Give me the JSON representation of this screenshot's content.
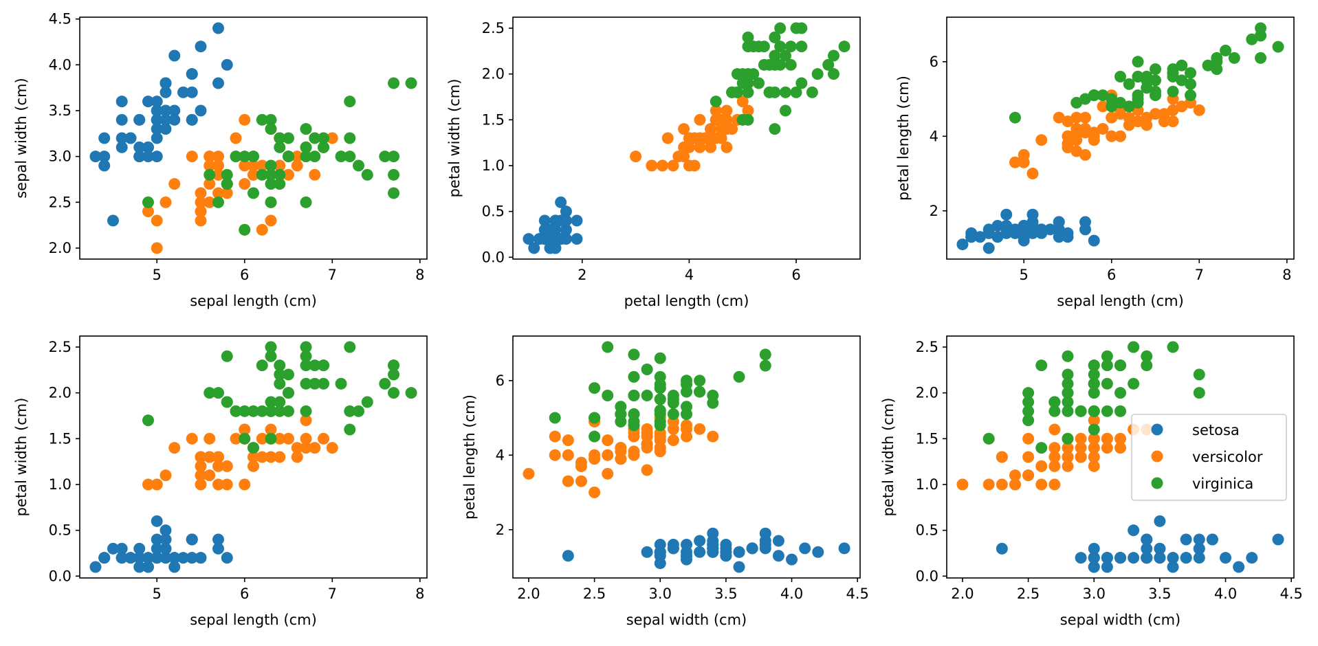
{
  "figure": {
    "legend": {
      "subplot": 5,
      "placement": "center-right",
      "entries": [
        "setosa",
        "versicolor",
        "virginica"
      ]
    }
  },
  "chart_data": {
    "type": "scatter",
    "species": [
      {
        "name": "setosa",
        "color": "#1f77b4"
      },
      {
        "name": "versicolor",
        "color": "#ff7f0e"
      },
      {
        "name": "virginica",
        "color": "#2ca02c"
      }
    ],
    "feature_names": [
      "sepal length (cm)",
      "sepal width (cm)",
      "petal length (cm)",
      "petal width (cm)"
    ],
    "subplots": [
      {
        "x_feature": 0,
        "y_feature": 1,
        "xlabel": "sepal length (cm)",
        "ylabel": "sepal width (cm)",
        "xlim": [
          4.12,
          8.08
        ],
        "ylim": [
          1.88,
          4.52
        ],
        "xticks": [
          5,
          6,
          7,
          8
        ],
        "xticklabels": [
          "5",
          "6",
          "7",
          "8"
        ],
        "yticks": [
          2.0,
          2.5,
          3.0,
          3.5,
          4.0,
          4.5
        ],
        "yticklabels": [
          "2.0",
          "2.5",
          "3.0",
          "3.5",
          "4.0",
          "4.5"
        ]
      },
      {
        "x_feature": 2,
        "y_feature": 3,
        "xlabel": "petal length (cm)",
        "ylabel": "petal width (cm)",
        "xlim": [
          0.705,
          7.195
        ],
        "ylim": [
          -0.02,
          2.62
        ],
        "xticks": [
          2,
          4,
          6
        ],
        "xticklabels": [
          "2",
          "4",
          "6"
        ],
        "yticks": [
          0.0,
          0.5,
          1.0,
          1.5,
          2.0,
          2.5
        ],
        "yticklabels": [
          "0.0",
          "0.5",
          "1.0",
          "1.5",
          "2.0",
          "2.5"
        ]
      },
      {
        "x_feature": 0,
        "y_feature": 2,
        "xlabel": "sepal length (cm)",
        "ylabel": "petal length (cm)",
        "xlim": [
          4.12,
          8.08
        ],
        "ylim": [
          0.705,
          7.195
        ],
        "xticks": [
          5,
          6,
          7,
          8
        ],
        "xticklabels": [
          "5",
          "6",
          "7",
          "8"
        ],
        "yticks": [
          2,
          4,
          6
        ],
        "yticklabels": [
          "2",
          "4",
          "6"
        ]
      },
      {
        "x_feature": 0,
        "y_feature": 3,
        "xlabel": "sepal length (cm)",
        "ylabel": "petal width (cm)",
        "xlim": [
          4.12,
          8.08
        ],
        "ylim": [
          -0.02,
          2.62
        ],
        "xticks": [
          5,
          6,
          7,
          8
        ],
        "xticklabels": [
          "5",
          "6",
          "7",
          "8"
        ],
        "yticks": [
          0.0,
          0.5,
          1.0,
          1.5,
          2.0,
          2.5
        ],
        "yticklabels": [
          "0.0",
          "0.5",
          "1.0",
          "1.5",
          "2.0",
          "2.5"
        ]
      },
      {
        "x_feature": 1,
        "y_feature": 2,
        "xlabel": "sepal width (cm)",
        "ylabel": "petal length (cm)",
        "xlim": [
          1.88,
          4.52
        ],
        "ylim": [
          0.705,
          7.195
        ],
        "xticks": [
          2.0,
          2.5,
          3.0,
          3.5,
          4.0,
          4.5
        ],
        "xticklabels": [
          "2.0",
          "2.5",
          "3.0",
          "3.5",
          "4.0",
          "4.5"
        ],
        "yticks": [
          2,
          4,
          6
        ],
        "yticklabels": [
          "2",
          "4",
          "6"
        ]
      },
      {
        "x_feature": 1,
        "y_feature": 3,
        "xlabel": "sepal width (cm)",
        "ylabel": "petal width (cm)",
        "xlim": [
          1.88,
          4.52
        ],
        "ylim": [
          -0.02,
          2.62
        ],
        "xticks": [
          2.0,
          2.5,
          3.0,
          3.5,
          4.0,
          4.5
        ],
        "xticklabels": [
          "2.0",
          "2.5",
          "3.0",
          "3.5",
          "4.0",
          "4.5"
        ],
        "yticks": [
          0.0,
          0.5,
          1.0,
          1.5,
          2.0,
          2.5
        ],
        "yticklabels": [
          "0.0",
          "0.5",
          "1.0",
          "1.5",
          "2.0",
          "2.5"
        ]
      }
    ],
    "samples": {
      "setosa": [
        [
          5.1,
          3.5,
          1.4,
          0.2
        ],
        [
          4.9,
          3.0,
          1.4,
          0.2
        ],
        [
          4.7,
          3.2,
          1.3,
          0.2
        ],
        [
          4.6,
          3.1,
          1.5,
          0.2
        ],
        [
          5.0,
          3.6,
          1.4,
          0.2
        ],
        [
          5.4,
          3.9,
          1.7,
          0.4
        ],
        [
          4.6,
          3.4,
          1.4,
          0.3
        ],
        [
          5.0,
          3.4,
          1.5,
          0.2
        ],
        [
          4.4,
          2.9,
          1.4,
          0.2
        ],
        [
          4.9,
          3.1,
          1.5,
          0.1
        ],
        [
          5.4,
          3.7,
          1.5,
          0.2
        ],
        [
          4.8,
          3.4,
          1.6,
          0.2
        ],
        [
          4.8,
          3.0,
          1.4,
          0.1
        ],
        [
          4.3,
          3.0,
          1.1,
          0.1
        ],
        [
          5.8,
          4.0,
          1.2,
          0.2
        ],
        [
          5.7,
          4.4,
          1.5,
          0.4
        ],
        [
          5.4,
          3.9,
          1.3,
          0.4
        ],
        [
          5.1,
          3.5,
          1.4,
          0.3
        ],
        [
          5.7,
          3.8,
          1.7,
          0.3
        ],
        [
          5.1,
          3.8,
          1.5,
          0.3
        ],
        [
          5.4,
          3.4,
          1.7,
          0.2
        ],
        [
          5.1,
          3.7,
          1.5,
          0.4
        ],
        [
          4.6,
          3.6,
          1.0,
          0.2
        ],
        [
          5.1,
          3.3,
          1.7,
          0.5
        ],
        [
          4.8,
          3.4,
          1.9,
          0.2
        ],
        [
          5.0,
          3.0,
          1.6,
          0.2
        ],
        [
          5.0,
          3.4,
          1.6,
          0.4
        ],
        [
          5.2,
          3.5,
          1.5,
          0.2
        ],
        [
          5.2,
          3.4,
          1.4,
          0.2
        ],
        [
          4.7,
          3.2,
          1.6,
          0.2
        ],
        [
          4.8,
          3.1,
          1.6,
          0.2
        ],
        [
          5.4,
          3.4,
          1.5,
          0.4
        ],
        [
          5.2,
          4.1,
          1.5,
          0.1
        ],
        [
          5.5,
          4.2,
          1.4,
          0.2
        ],
        [
          4.9,
          3.1,
          1.5,
          0.2
        ],
        [
          5.0,
          3.2,
          1.2,
          0.2
        ],
        [
          5.5,
          3.5,
          1.3,
          0.2
        ],
        [
          4.9,
          3.6,
          1.4,
          0.1
        ],
        [
          4.4,
          3.0,
          1.3,
          0.2
        ],
        [
          5.1,
          3.4,
          1.5,
          0.2
        ],
        [
          5.0,
          3.5,
          1.3,
          0.3
        ],
        [
          4.5,
          2.3,
          1.3,
          0.3
        ],
        [
          4.4,
          3.2,
          1.3,
          0.2
        ],
        [
          5.0,
          3.5,
          1.6,
          0.6
        ],
        [
          5.1,
          3.8,
          1.9,
          0.4
        ],
        [
          4.8,
          3.0,
          1.4,
          0.3
        ],
        [
          5.1,
          3.8,
          1.6,
          0.2
        ],
        [
          4.6,
          3.2,
          1.4,
          0.2
        ],
        [
          5.3,
          3.7,
          1.5,
          0.2
        ],
        [
          5.0,
          3.3,
          1.4,
          0.2
        ]
      ],
      "versicolor": [
        [
          7.0,
          3.2,
          4.7,
          1.4
        ],
        [
          6.4,
          3.2,
          4.5,
          1.5
        ],
        [
          6.9,
          3.1,
          4.9,
          1.5
        ],
        [
          5.5,
          2.3,
          4.0,
          1.3
        ],
        [
          6.5,
          2.8,
          4.6,
          1.5
        ],
        [
          5.7,
          2.8,
          4.5,
          1.3
        ],
        [
          6.3,
          3.3,
          4.7,
          1.6
        ],
        [
          4.9,
          2.4,
          3.3,
          1.0
        ],
        [
          6.6,
          2.9,
          4.6,
          1.3
        ],
        [
          5.2,
          2.7,
          3.9,
          1.4
        ],
        [
          5.0,
          2.0,
          3.5,
          1.0
        ],
        [
          5.9,
          3.0,
          4.2,
          1.5
        ],
        [
          6.0,
          2.2,
          4.0,
          1.0
        ],
        [
          6.1,
          2.9,
          4.7,
          1.4
        ],
        [
          5.6,
          2.9,
          3.6,
          1.3
        ],
        [
          6.7,
          3.1,
          4.4,
          1.4
        ],
        [
          5.6,
          3.0,
          4.5,
          1.5
        ],
        [
          5.8,
          2.7,
          4.1,
          1.0
        ],
        [
          6.2,
          2.2,
          4.5,
          1.5
        ],
        [
          5.6,
          2.5,
          3.9,
          1.1
        ],
        [
          5.9,
          3.2,
          4.8,
          1.8
        ],
        [
          6.1,
          2.8,
          4.0,
          1.3
        ],
        [
          6.3,
          2.5,
          4.9,
          1.5
        ],
        [
          6.1,
          2.8,
          4.7,
          1.2
        ],
        [
          6.4,
          2.9,
          4.3,
          1.3
        ],
        [
          6.6,
          3.0,
          4.4,
          1.4
        ],
        [
          6.8,
          2.8,
          4.8,
          1.4
        ],
        [
          6.7,
          3.0,
          5.0,
          1.7
        ],
        [
          6.0,
          2.9,
          4.5,
          1.5
        ],
        [
          5.7,
          2.6,
          3.5,
          1.0
        ],
        [
          5.5,
          2.4,
          3.8,
          1.1
        ],
        [
          5.5,
          2.4,
          3.7,
          1.0
        ],
        [
          5.8,
          2.7,
          3.9,
          1.2
        ],
        [
          6.0,
          2.7,
          5.1,
          1.6
        ],
        [
          5.4,
          3.0,
          4.5,
          1.5
        ],
        [
          6.0,
          3.4,
          4.5,
          1.6
        ],
        [
          6.7,
          3.1,
          4.7,
          1.5
        ],
        [
          6.3,
          2.3,
          4.4,
          1.3
        ],
        [
          5.6,
          3.0,
          4.1,
          1.3
        ],
        [
          5.5,
          2.5,
          4.0,
          1.3
        ],
        [
          5.5,
          2.6,
          4.4,
          1.2
        ],
        [
          6.1,
          3.0,
          4.6,
          1.4
        ],
        [
          5.8,
          2.6,
          4.0,
          1.2
        ],
        [
          5.0,
          2.3,
          3.3,
          1.0
        ],
        [
          5.6,
          2.7,
          4.2,
          1.3
        ],
        [
          5.7,
          3.0,
          4.2,
          1.2
        ],
        [
          5.7,
          2.9,
          4.2,
          1.3
        ],
        [
          6.2,
          2.9,
          4.3,
          1.3
        ],
        [
          5.1,
          2.5,
          3.0,
          1.1
        ],
        [
          5.7,
          2.8,
          4.1,
          1.3
        ]
      ],
      "virginica": [
        [
          6.3,
          3.3,
          6.0,
          2.5
        ],
        [
          5.8,
          2.7,
          5.1,
          1.9
        ],
        [
          7.1,
          3.0,
          5.9,
          2.1
        ],
        [
          6.3,
          2.9,
          5.6,
          1.8
        ],
        [
          6.5,
          3.0,
          5.8,
          2.2
        ],
        [
          7.6,
          3.0,
          6.6,
          2.1
        ],
        [
          4.9,
          2.5,
          4.5,
          1.7
        ],
        [
          7.3,
          2.9,
          6.3,
          1.8
        ],
        [
          6.7,
          2.5,
          5.8,
          1.8
        ],
        [
          7.2,
          3.6,
          6.1,
          2.5
        ],
        [
          6.5,
          3.2,
          5.1,
          2.0
        ],
        [
          6.4,
          2.7,
          5.3,
          1.9
        ],
        [
          6.8,
          3.0,
          5.5,
          2.1
        ],
        [
          5.7,
          2.5,
          5.0,
          2.0
        ],
        [
          5.8,
          2.8,
          5.1,
          2.4
        ],
        [
          6.4,
          3.2,
          5.3,
          2.3
        ],
        [
          6.5,
          3.0,
          5.5,
          1.8
        ],
        [
          7.7,
          3.8,
          6.7,
          2.2
        ],
        [
          7.7,
          2.6,
          6.9,
          2.3
        ],
        [
          6.0,
          2.2,
          5.0,
          1.5
        ],
        [
          6.9,
          3.2,
          5.7,
          2.3
        ],
        [
          5.6,
          2.8,
          4.9,
          2.0
        ],
        [
          7.7,
          2.8,
          6.7,
          2.0
        ],
        [
          6.3,
          2.7,
          4.9,
          1.8
        ],
        [
          6.7,
          3.3,
          5.7,
          2.1
        ],
        [
          7.2,
          3.2,
          6.0,
          1.8
        ],
        [
          6.2,
          2.8,
          4.8,
          1.8
        ],
        [
          6.1,
          3.0,
          4.9,
          1.8
        ],
        [
          6.4,
          2.8,
          5.6,
          2.1
        ],
        [
          7.2,
          3.0,
          5.8,
          1.6
        ],
        [
          7.4,
          2.8,
          6.1,
          1.9
        ],
        [
          7.9,
          3.8,
          6.4,
          2.0
        ],
        [
          6.4,
          2.8,
          5.6,
          2.2
        ],
        [
          6.3,
          2.8,
          5.1,
          1.5
        ],
        [
          6.1,
          2.6,
          5.6,
          1.4
        ],
        [
          7.7,
          3.0,
          6.1,
          2.3
        ],
        [
          6.3,
          3.4,
          5.6,
          2.4
        ],
        [
          6.4,
          3.1,
          5.5,
          1.8
        ],
        [
          6.0,
          3.0,
          4.8,
          1.8
        ],
        [
          6.9,
          3.1,
          5.4,
          2.1
        ],
        [
          6.7,
          3.1,
          5.6,
          2.4
        ],
        [
          6.9,
          3.1,
          5.1,
          2.3
        ],
        [
          5.8,
          2.7,
          5.1,
          1.9
        ],
        [
          6.8,
          3.2,
          5.9,
          2.3
        ],
        [
          6.7,
          3.3,
          5.7,
          2.5
        ],
        [
          6.7,
          3.0,
          5.2,
          2.3
        ],
        [
          6.3,
          2.5,
          5.0,
          1.9
        ],
        [
          6.5,
          3.0,
          5.2,
          2.0
        ],
        [
          6.2,
          3.4,
          5.4,
          2.3
        ],
        [
          5.9,
          3.0,
          5.1,
          1.8
        ]
      ]
    }
  }
}
